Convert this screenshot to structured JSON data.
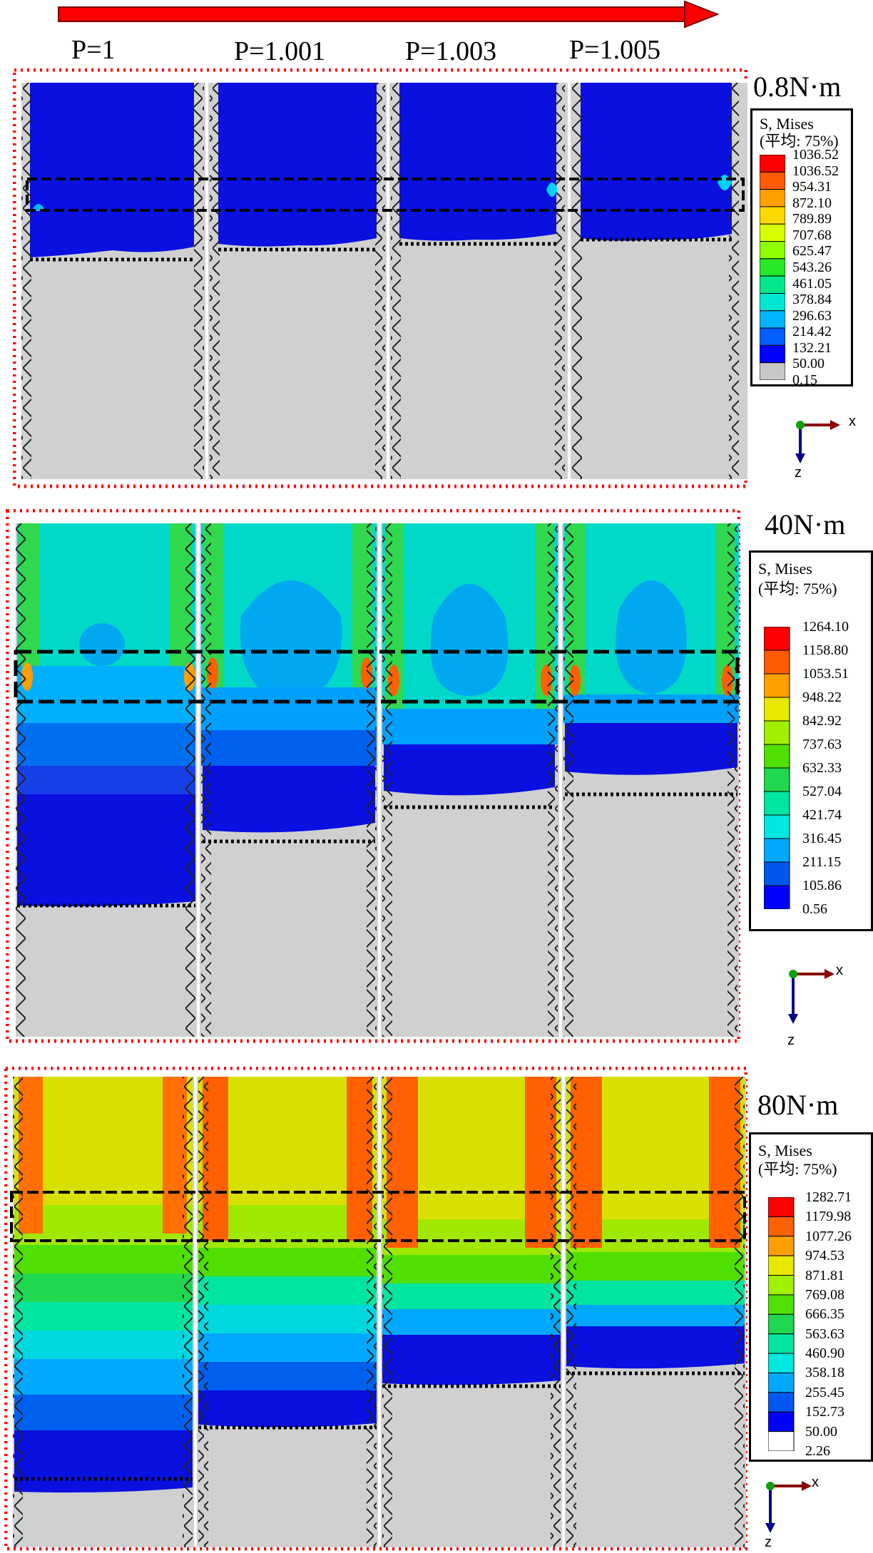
{
  "pitch_labels": [
    "P=1",
    "P=1.001",
    "P=1.003",
    "P=1.005"
  ],
  "panels": [
    {
      "torque": "0.8N·m",
      "legend": {
        "title1": "S, Mises",
        "title2": "(平均: 75%)",
        "values": [
          "1036.52",
          "1036.52",
          "954.31",
          "872.10",
          "789.89",
          "707.68",
          "625.47",
          "543.26",
          "461.05",
          "378.84",
          "296.63",
          "214.42",
          "132.21",
          "50.00",
          "0.15"
        ]
      },
      "axes": {
        "x": "x",
        "z": "z"
      }
    },
    {
      "torque": "40N·m",
      "legend": {
        "title1": "S, Mises",
        "title2": "(平均: 75%)",
        "values": [
          "1264.10",
          "1158.80",
          "1053.51",
          "948.22",
          "842.92",
          "737.63",
          "632.33",
          "527.04",
          "421.74",
          "316.45",
          "211.15",
          "105.86",
          "0.56"
        ]
      },
      "axes": {
        "x": "x",
        "z": "z"
      }
    },
    {
      "torque": "80N·m",
      "legend": {
        "title1": "S, Mises",
        "title2": "(平均: 75%)",
        "values": [
          "1282.71",
          "1179.98",
          "1077.26",
          "974.53",
          "871.81",
          "769.08",
          "666.35",
          "563.63",
          "460.90",
          "358.18",
          "255.45",
          "152.73",
          "50.00",
          "2.26"
        ]
      },
      "axes": {
        "x": "x",
        "z": "z"
      }
    }
  ],
  "colors": {
    "arrow": "#ff0000",
    "frame_dots": "#ff0000",
    "unloaded_grey": "#d0d0d0",
    "scale_0_8": [
      "#ff0000",
      "#ff5a00",
      "#ffa000",
      "#ffd800",
      "#d8ff00",
      "#8cff00",
      "#28e628",
      "#00e68c",
      "#00e6d2",
      "#00b4ff",
      "#0060ff",
      "#0000ff",
      "#c8c8c8"
    ],
    "scale_40": [
      "#ff0000",
      "#ff5a00",
      "#ffa000",
      "#e8e800",
      "#a0f000",
      "#50e000",
      "#20d850",
      "#00e6a0",
      "#00e8e0",
      "#00a8ff",
      "#0058f0",
      "#0000ff"
    ],
    "scale_80": [
      "#ff0000",
      "#ff6000",
      "#ffa000",
      "#e8e800",
      "#a0f000",
      "#50e000",
      "#20d850",
      "#00e6a0",
      "#00e8e0",
      "#00a8ff",
      "#0058f0",
      "#0000ff",
      "#ffffff"
    ]
  }
}
